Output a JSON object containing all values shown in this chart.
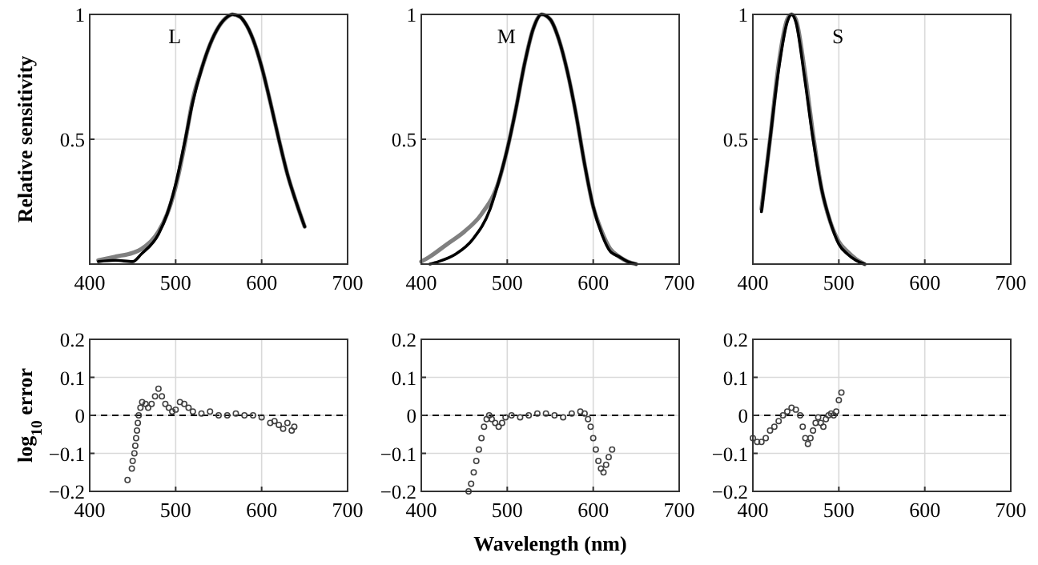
{
  "chart_data": [
    {
      "type": "line",
      "ylabel": "Relative sensitivity",
      "annotations": [
        "L"
      ],
      "grid": true,
      "line_style": "solid",
      "xlim": [
        400,
        700
      ],
      "xticks": [
        400,
        500,
        600,
        700
      ],
      "ylim": [
        0,
        1
      ],
      "yticks": [
        0.5,
        1
      ],
      "series": [
        {
          "color": "#808080",
          "x": [
            410,
            430,
            450,
            460,
            480,
            490,
            500,
            510,
            520,
            530,
            540,
            550,
            560,
            566,
            575,
            580,
            590,
            600,
            610,
            620,
            630,
            640,
            650
          ],
          "values": [
            0.015,
            0.03,
            0.045,
            0.06,
            0.13,
            0.2,
            0.31,
            0.47,
            0.66,
            0.78,
            0.88,
            0.95,
            0.99,
            1.0,
            0.99,
            0.97,
            0.9,
            0.79,
            0.65,
            0.5,
            0.36,
            0.25,
            0.15
          ]
        },
        {
          "color": "#000000",
          "x": [
            410,
            430,
            450,
            460,
            480,
            490,
            500,
            510,
            520,
            530,
            540,
            550,
            560,
            566,
            575,
            580,
            590,
            600,
            610,
            620,
            630,
            640,
            650
          ],
          "values": [
            0.01,
            0.015,
            0.01,
            0.04,
            0.12,
            0.2,
            0.32,
            0.48,
            0.65,
            0.78,
            0.88,
            0.95,
            0.99,
            1.0,
            0.99,
            0.97,
            0.9,
            0.79,
            0.65,
            0.5,
            0.36,
            0.25,
            0.15
          ]
        }
      ]
    },
    {
      "type": "line",
      "annotations": [
        "M"
      ],
      "grid": true,
      "line_style": "solid",
      "xlim": [
        400,
        700
      ],
      "xticks": [
        400,
        500,
        600,
        700
      ],
      "ylim": [
        0,
        1
      ],
      "yticks": [
        0.5,
        1
      ],
      "series": [
        {
          "color": "#808080",
          "x": [
            400,
            410,
            430,
            450,
            470,
            490,
            500,
            510,
            520,
            530,
            540,
            550,
            560,
            570,
            580,
            590,
            600,
            610,
            620,
            630,
            640,
            650
          ],
          "values": [
            0.01,
            0.03,
            0.08,
            0.13,
            0.2,
            0.33,
            0.46,
            0.62,
            0.8,
            0.94,
            1.0,
            0.98,
            0.9,
            0.77,
            0.6,
            0.4,
            0.23,
            0.13,
            0.06,
            0.03,
            0.01,
            0.0
          ]
        },
        {
          "color": "#000000",
          "x": [
            410,
            420,
            440,
            460,
            480,
            490,
            500,
            510,
            520,
            530,
            540,
            550,
            560,
            570,
            580,
            590,
            600,
            610,
            620,
            630,
            640,
            650
          ],
          "values": [
            0.0,
            0.01,
            0.04,
            0.1,
            0.22,
            0.33,
            0.46,
            0.62,
            0.8,
            0.94,
            1.0,
            0.98,
            0.9,
            0.77,
            0.6,
            0.4,
            0.23,
            0.12,
            0.05,
            0.03,
            0.01,
            0.0
          ]
        }
      ]
    },
    {
      "type": "line",
      "annotations": [
        "S"
      ],
      "grid": true,
      "line_style": "solid",
      "xlim": [
        400,
        700
      ],
      "xticks": [
        400,
        500,
        600,
        700
      ],
      "ylim": [
        0,
        1
      ],
      "yticks": [
        0.5,
        1
      ],
      "series": [
        {
          "color": "#808080",
          "x": [
            410,
            420,
            430,
            440,
            445,
            450,
            460,
            470,
            480,
            490,
            500,
            510,
            520,
            530
          ],
          "values": [
            0.22,
            0.5,
            0.8,
            0.98,
            1.0,
            0.98,
            0.78,
            0.52,
            0.3,
            0.17,
            0.09,
            0.05,
            0.02,
            0.0
          ]
        },
        {
          "color": "#000000",
          "x": [
            410,
            420,
            430,
            440,
            445,
            450,
            460,
            470,
            480,
            490,
            500,
            510,
            520,
            530
          ],
          "values": [
            0.21,
            0.5,
            0.78,
            0.97,
            1.0,
            0.97,
            0.75,
            0.5,
            0.3,
            0.17,
            0.08,
            0.04,
            0.015,
            0.0
          ]
        }
      ]
    },
    {
      "type": "scatter",
      "ylabel": "log$_{10}$ error",
      "grid": true,
      "marker": "circle",
      "xlim": [
        400,
        700
      ],
      "xticks": [
        400,
        500,
        600,
        700
      ],
      "ylim": [
        -0.2,
        0.2
      ],
      "yticks": [
        -0.2,
        -0.1,
        0,
        0.1,
        0.2
      ],
      "ref_lines": [
        {
          "axis": "y",
          "value": 0,
          "line_style": "dashed",
          "color": "#000000"
        }
      ],
      "series": [
        {
          "color": "#404040",
          "x": [
            444,
            449,
            450,
            452,
            453,
            454,
            455,
            456,
            457,
            459,
            461,
            465,
            468,
            472,
            476,
            480,
            484,
            488,
            492,
            496,
            500,
            505,
            510,
            515,
            520,
            530,
            540,
            550,
            560,
            570,
            580,
            590,
            600,
            610,
            615,
            620,
            625,
            630,
            635,
            638
          ],
          "values": [
            -0.17,
            -0.14,
            -0.12,
            -0.1,
            -0.08,
            -0.06,
            -0.04,
            -0.02,
            0.0,
            0.02,
            0.035,
            0.03,
            0.02,
            0.03,
            0.05,
            0.07,
            0.05,
            0.03,
            0.02,
            0.01,
            0.015,
            0.035,
            0.03,
            0.02,
            0.01,
            0.005,
            0.01,
            0.0,
            0.0,
            0.005,
            0.0,
            0.0,
            -0.005,
            -0.02,
            -0.015,
            -0.025,
            -0.035,
            -0.02,
            -0.04,
            -0.03
          ]
        }
      ]
    },
    {
      "type": "scatter",
      "xlabel": "Wavelength (nm)",
      "grid": true,
      "marker": "circle",
      "xlim": [
        400,
        700
      ],
      "xticks": [
        400,
        500,
        600,
        700
      ],
      "ylim": [
        -0.2,
        0.2
      ],
      "yticks": [
        -0.2,
        -0.1,
        0,
        0.1,
        0.2
      ],
      "ref_lines": [
        {
          "axis": "y",
          "value": 0,
          "line_style": "dashed",
          "color": "#000000"
        }
      ],
      "series": [
        {
          "color": "#404040",
          "x": [
            455,
            458,
            461,
            464,
            467,
            470,
            473,
            476,
            479,
            482,
            486,
            490,
            494,
            498,
            505,
            515,
            525,
            535,
            545,
            555,
            565,
            575,
            585,
            590,
            594,
            597,
            600,
            603,
            606,
            609,
            612,
            615,
            618,
            622
          ],
          "values": [
            -0.2,
            -0.18,
            -0.15,
            -0.12,
            -0.09,
            -0.06,
            -0.03,
            -0.01,
            0.0,
            -0.01,
            -0.02,
            -0.03,
            -0.02,
            -0.005,
            0.0,
            -0.005,
            0.0,
            0.005,
            0.005,
            0.0,
            -0.005,
            0.005,
            0.01,
            0.005,
            -0.01,
            -0.03,
            -0.06,
            -0.09,
            -0.12,
            -0.14,
            -0.15,
            -0.13,
            -0.11,
            -0.09
          ]
        }
      ]
    },
    {
      "type": "scatter",
      "grid": true,
      "marker": "circle",
      "xlim": [
        400,
        700
      ],
      "xticks": [
        400,
        500,
        600,
        700
      ],
      "ylim": [
        -0.2,
        0.2
      ],
      "yticks": [
        -0.2,
        -0.1,
        0,
        0.1,
        0.2
      ],
      "ref_lines": [
        {
          "axis": "y",
          "value": 0,
          "line_style": "dashed",
          "color": "#000000"
        }
      ],
      "series": [
        {
          "color": "#404040",
          "x": [
            400,
            405,
            410,
            415,
            420,
            425,
            430,
            435,
            440,
            445,
            450,
            455,
            458,
            461,
            464,
            467,
            470,
            473,
            476,
            479,
            482,
            485,
            488,
            491,
            494,
            497,
            500,
            503
          ],
          "values": [
            -0.06,
            -0.07,
            -0.07,
            -0.06,
            -0.04,
            -0.03,
            -0.015,
            0.0,
            0.01,
            0.02,
            0.015,
            0.0,
            -0.03,
            -0.06,
            -0.075,
            -0.06,
            -0.04,
            -0.02,
            -0.005,
            -0.02,
            -0.03,
            -0.01,
            0.0,
            0.005,
            0.0,
            0.01,
            0.04,
            0.06
          ]
        }
      ]
    }
  ]
}
